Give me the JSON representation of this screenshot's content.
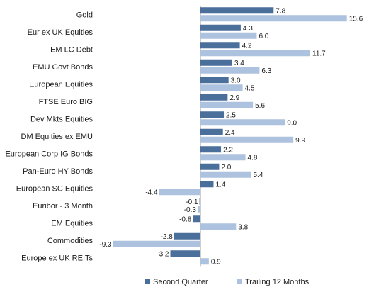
{
  "chart_data": {
    "type": "bar",
    "orientation": "horizontal",
    "categories": [
      "Gold",
      "Eur ex UK Equities",
      "EM LC Debt",
      "EMU Govt Bonds",
      "European Equities",
      "FTSE Euro BIG",
      "Dev Mkts Equities",
      "DM Equities ex EMU",
      "European Corp IG Bonds",
      "Pan-Euro HY Bonds",
      "European SC Equities",
      "Euribor - 3 Month",
      "EM Equities",
      "Commodities",
      "Europe ex UK REITs"
    ],
    "series": [
      {
        "name": "Second Quarter",
        "color": "#4a6f9b",
        "values": [
          7.8,
          4.3,
          4.2,
          3.4,
          3.0,
          2.9,
          2.5,
          2.4,
          2.2,
          2.0,
          1.4,
          -0.1,
          -0.8,
          -2.8,
          -3.2
        ],
        "labels": [
          "7.8",
          "4.3",
          "4.2",
          "3.4",
          "3.0",
          "2.9",
          "2.5",
          "2.4",
          "2.2",
          "2.0",
          "1.4",
          "-0.1",
          "-0.8",
          "-2.8",
          "-3.2"
        ]
      },
      {
        "name": "Trailing 12 Months",
        "color": "#adc2de",
        "values": [
          15.6,
          6.0,
          11.7,
          6.3,
          4.5,
          5.6,
          9.0,
          9.9,
          4.8,
          5.4,
          -4.4,
          -0.3,
          3.8,
          -9.3,
          0.9
        ],
        "labels": [
          "15.6",
          "6.0",
          "11.7",
          "6.3",
          "4.5",
          "5.6",
          "9.0",
          "9.9",
          "4.8",
          "5.4",
          "-4.4",
          "-0.3",
          "3.8",
          "-9.3",
          "0.9"
        ]
      }
    ],
    "xlim": [
      -9.8,
      16.0
    ],
    "grid": false,
    "legend_position": "bottom",
    "title": "",
    "xlabel": "",
    "ylabel": ""
  }
}
